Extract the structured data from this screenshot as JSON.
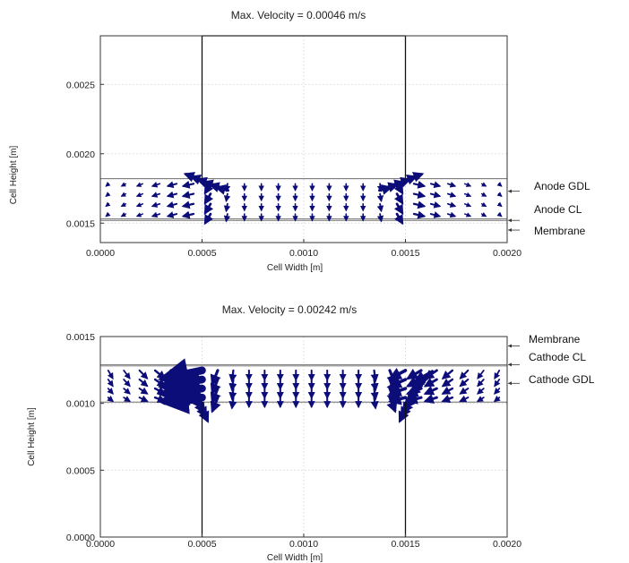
{
  "figure": {
    "colors": {
      "arrow": "#0d0d7a",
      "frame": "#333333",
      "grid": "#cfcfcf"
    }
  },
  "chart_data": [
    {
      "type": "quiver",
      "title": "Max. Velocity = 0.00046 m/s",
      "xlabel": "Cell Width [m]",
      "ylabel": "Cell Height [m]",
      "xlim": [
        0.0,
        0.002
      ],
      "ylim": [
        0.00136,
        0.00285
      ],
      "x_ticks": [
        "0.0000",
        "0.0005",
        "0.0010",
        "0.0015",
        "0.0020"
      ],
      "x_tick_values": [
        0.0,
        0.0005,
        0.001,
        0.0015,
        0.002
      ],
      "y_ticks": [
        "0.0015",
        "0.0020",
        "0.0025"
      ],
      "y_tick_values": [
        0.0015,
        0.002,
        0.0025
      ],
      "grid": true,
      "max_velocity": 0.00046,
      "max_velocity_unit": "m/s",
      "layers": [
        {
          "name": "Anode GDL",
          "y_bottom": 0.00153,
          "y_top": 0.00182
        },
        {
          "name": "Anode CL",
          "y_bottom": 0.00152,
          "y_top": 0.00153
        },
        {
          "name": "Membrane",
          "y_bottom": 0.00136,
          "y_top": 0.00152
        }
      ],
      "channel": {
        "x_left": 0.0005,
        "x_right": 0.0015,
        "y_bottom": 0.00182,
        "y_top": 0.00285
      },
      "annotations": [
        {
          "label": "Anode GDL",
          "y": 0.00173
        },
        {
          "label": "Anode CL",
          "y": 0.00152
        },
        {
          "label": "Membrane",
          "y": 0.00145
        }
      ],
      "flow": "from gas channel inlet corners spreading downward through GDL toward catalyst layer"
    },
    {
      "type": "quiver",
      "title": "Max. Velocity = 0.00242 m/s",
      "xlabel": "Cell Width [m]",
      "ylabel": "Cell Height [m]",
      "xlim": [
        0.0,
        0.002
      ],
      "ylim": [
        0.0,
        0.0015
      ],
      "x_ticks": [
        "0.0000",
        "0.0005",
        "0.0010",
        "0.0015",
        "0.0020"
      ],
      "x_tick_values": [
        0.0,
        0.0005,
        0.001,
        0.0015,
        0.002
      ],
      "y_ticks": [
        "0.0000",
        "0.0005",
        "0.0010",
        "0.0015"
      ],
      "y_tick_values": [
        0.0,
        0.0005,
        0.001,
        0.0015
      ],
      "grid": true,
      "max_velocity": 0.00242,
      "max_velocity_unit": "m/s",
      "layers": [
        {
          "name": "Membrane",
          "y_bottom": 0.00129,
          "y_top": 0.0015
        },
        {
          "name": "Cathode CL",
          "y_bottom": 0.00128,
          "y_top": 0.00129
        },
        {
          "name": "Cathode GDL",
          "y_bottom": 0.00101,
          "y_top": 0.00128
        }
      ],
      "channel": {
        "x_left": 0.0005,
        "x_right": 0.0015,
        "y_bottom": 0.0,
        "y_top": 0.00101
      },
      "annotations": [
        {
          "label": "Membrane",
          "y": 0.00143
        },
        {
          "label": "Cathode CL",
          "y": 0.00129
        },
        {
          "label": "Cathode GDL",
          "y": 0.00115
        }
      ],
      "flow": "from catalyst layer converging toward gas channel outlet corners"
    }
  ]
}
